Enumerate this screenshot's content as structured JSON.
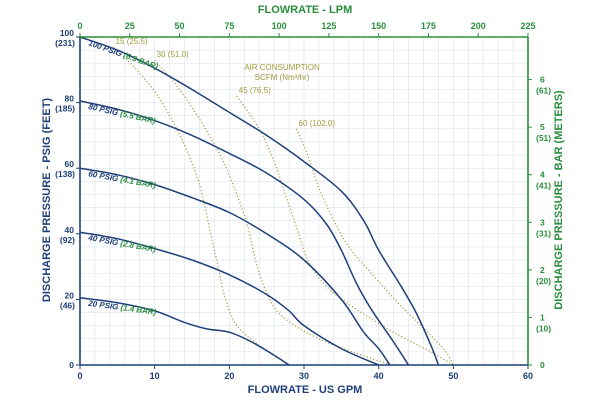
{
  "chart_data": {
    "type": "line",
    "title": "",
    "colors": {
      "psig": "#1f3f78",
      "bar": "#2a8f3c",
      "air": "#a39a3c",
      "grid": "#d9e2ef"
    },
    "x_bottom": {
      "label": "FLOWRATE - US GPM",
      "range": [
        0,
        60
      ],
      "ticks": [
        {
          "value": 0,
          "label": "0"
        },
        {
          "value": 10,
          "label": "10"
        },
        {
          "value": 20,
          "label": "20"
        },
        {
          "value": 30,
          "label": "30"
        },
        {
          "value": 40,
          "label": "40"
        },
        {
          "value": 50,
          "label": "50"
        },
        {
          "value": 60,
          "label": "60"
        }
      ]
    },
    "x_top": {
      "label": "FLOWRATE - LPM",
      "range": [
        0,
        225
      ],
      "ticks": [
        {
          "value": 0,
          "label": "0"
        },
        {
          "value": 25,
          "label": "25"
        },
        {
          "value": 50,
          "label": "50"
        },
        {
          "value": 75,
          "label": "75"
        },
        {
          "value": 100,
          "label": "100"
        },
        {
          "value": 125,
          "label": "125"
        },
        {
          "value": 150,
          "label": "150"
        },
        {
          "value": 175,
          "label": "175"
        },
        {
          "value": 200,
          "label": "200"
        },
        {
          "value": 225,
          "label": "225"
        }
      ]
    },
    "y_left": {
      "label": "DISCHARGE PRESSURE - PSIG (FEET)",
      "range": [
        0,
        100
      ],
      "ticks": [
        {
          "value": 100,
          "label": "100",
          "sub": "(231)"
        },
        {
          "value": 80,
          "label": "80",
          "sub": "(185)"
        },
        {
          "value": 60,
          "label": "60",
          "sub": "(138)"
        },
        {
          "value": 40,
          "label": "40",
          "sub": "(92)"
        },
        {
          "value": 20,
          "label": "20",
          "sub": "(46)"
        },
        {
          "value": 0,
          "label": "0",
          "sub": ""
        }
      ]
    },
    "y_right": {
      "label": "DISCHARGE PRESSURE - BAR (METERS)",
      "range_bar": [
        0,
        6.895
      ],
      "ticks": [
        {
          "value": 6,
          "label": "6",
          "sub": "(61)"
        },
        {
          "value": 5,
          "label": "5",
          "sub": "(51)"
        },
        {
          "value": 4,
          "label": "4",
          "sub": "(41)"
        },
        {
          "value": 3,
          "label": "3",
          "sub": "(31)"
        },
        {
          "value": 2,
          "label": "2",
          "sub": "(20)"
        },
        {
          "value": 1,
          "label": "1",
          "sub": "(10)"
        },
        {
          "value": 0,
          "label": "0",
          "sub": ""
        }
      ]
    },
    "grid": true,
    "series": [
      {
        "name": "100 PSIG",
        "name_bar": "(6.9 BAR)",
        "style": "solid",
        "points": [
          [
            0,
            100
          ],
          [
            5,
            96
          ],
          [
            10,
            90.5
          ],
          [
            15,
            84
          ],
          [
            20,
            77
          ],
          [
            25,
            70
          ],
          [
            30,
            62
          ],
          [
            35,
            53
          ],
          [
            38,
            44
          ],
          [
            40,
            35
          ],
          [
            43,
            24
          ],
          [
            45,
            16
          ],
          [
            47,
            6
          ],
          [
            48,
            0
          ]
        ]
      },
      {
        "name": "80 PSIG",
        "name_bar": "(5.5 BAR)",
        "style": "solid",
        "points": [
          [
            0,
            80.5
          ],
          [
            5,
            78
          ],
          [
            10,
            74.5
          ],
          [
            15,
            70
          ],
          [
            20,
            64.5
          ],
          [
            25,
            58.5
          ],
          [
            30,
            50.5
          ],
          [
            33,
            43
          ],
          [
            35,
            35
          ],
          [
            37,
            25
          ],
          [
            39,
            17
          ],
          [
            42,
            7
          ],
          [
            44,
            0
          ]
        ]
      },
      {
        "name": "60 PSIG",
        "name_bar": "(4.1 BAR)",
        "style": "solid",
        "points": [
          [
            0,
            60
          ],
          [
            5,
            58
          ],
          [
            10,
            55
          ],
          [
            15,
            51
          ],
          [
            20,
            46.5
          ],
          [
            25,
            40
          ],
          [
            30,
            32
          ],
          [
            35,
            20
          ],
          [
            38,
            10
          ],
          [
            40,
            5
          ],
          [
            41.5,
            0
          ]
        ]
      },
      {
        "name": "40 PSIG",
        "name_bar": "(2.8 BAR)",
        "style": "solid",
        "points": [
          [
            0,
            40.5
          ],
          [
            5,
            38.5
          ],
          [
            10,
            35.5
          ],
          [
            15,
            32
          ],
          [
            20,
            27.5
          ],
          [
            25,
            21.5
          ],
          [
            28,
            16.5
          ],
          [
            30,
            12
          ],
          [
            35,
            5
          ],
          [
            40,
            0
          ]
        ]
      },
      {
        "name": "20 PSIG",
        "name_bar": "(1.4 BAR)",
        "style": "solid",
        "points": [
          [
            0,
            20.5
          ],
          [
            5,
            19
          ],
          [
            10,
            16.5
          ],
          [
            14,
            13
          ],
          [
            17,
            11
          ],
          [
            20,
            10
          ],
          [
            23,
            7
          ],
          [
            26,
            3
          ],
          [
            28,
            0
          ]
        ]
      }
    ],
    "air_consumption": {
      "title": "AIR CONSUMPTION",
      "units": "SCFM (Nm³/hr)",
      "lines": [
        {
          "label": "15 (25.5)",
          "points": [
            [
              4.5,
              97
            ],
            [
              8,
              89
            ],
            [
              11,
              80
            ],
            [
              14,
              67
            ],
            [
              16,
              55
            ],
            [
              17.5,
              40
            ],
            [
              18.5,
              30
            ],
            [
              19.5,
              20
            ],
            [
              21,
              12
            ],
            [
              24,
              6
            ],
            [
              28,
              0
            ]
          ]
        },
        {
          "label": "30 (51.0)",
          "points": [
            [
              10,
              93
            ],
            [
              13,
              85
            ],
            [
              16,
              75
            ],
            [
              19,
              63
            ],
            [
              21,
              52
            ],
            [
              22.5,
              42
            ],
            [
              23.5,
              32
            ],
            [
              25,
              22
            ],
            [
              27,
              15
            ],
            [
              32,
              8
            ],
            [
              39,
              2
            ],
            [
              42,
              0
            ]
          ]
        },
        {
          "label": "45 (76.5)",
          "points": [
            [
              21,
              82
            ],
            [
              24,
              72
            ],
            [
              26,
              62
            ],
            [
              27.5,
              52
            ],
            [
              29,
              42
            ],
            [
              30.5,
              32
            ],
            [
              33,
              24
            ],
            [
              37,
              17
            ],
            [
              42,
              10
            ],
            [
              47,
              4
            ],
            [
              50,
              0
            ]
          ]
        },
        {
          "label": "60 (102.0)",
          "points": [
            [
              29,
              72
            ],
            [
              30.5,
              64
            ],
            [
              32,
              54
            ],
            [
              34,
              44
            ],
            [
              36,
              36
            ],
            [
              39,
              28
            ],
            [
              43,
              18
            ],
            [
              47,
              9
            ],
            [
              49,
              4
            ],
            [
              50,
              0
            ]
          ]
        }
      ]
    }
  }
}
